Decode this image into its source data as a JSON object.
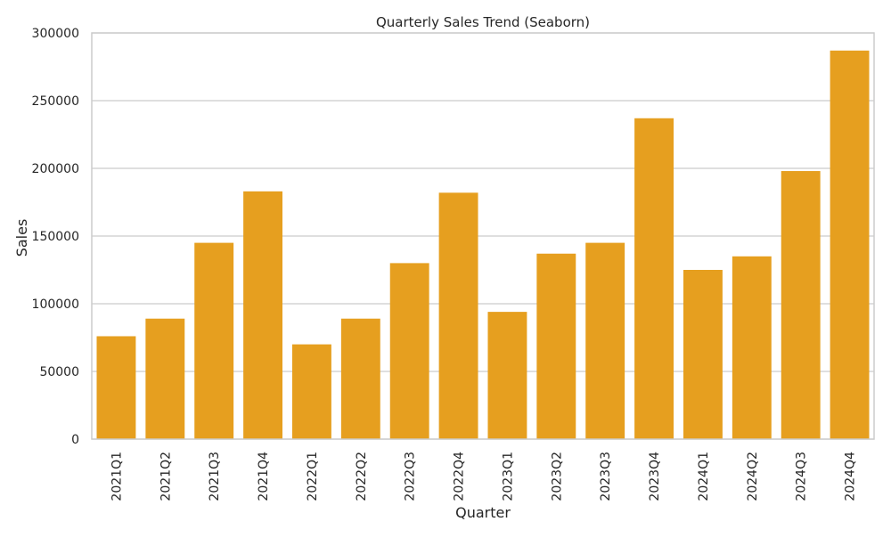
{
  "chart_data": {
    "type": "bar",
    "title": "Quarterly Sales Trend (Seaborn)",
    "xlabel": "Quarter",
    "ylabel": "Sales",
    "categories": [
      "2021Q1",
      "2021Q2",
      "2021Q3",
      "2021Q4",
      "2022Q1",
      "2022Q2",
      "2022Q3",
      "2022Q4",
      "2023Q1",
      "2023Q2",
      "2023Q3",
      "2023Q4",
      "2024Q1",
      "2024Q2",
      "2024Q3",
      "2024Q4"
    ],
    "values": [
      76000,
      89000,
      145000,
      183000,
      70000,
      89000,
      130000,
      182000,
      94000,
      137000,
      145000,
      237000,
      125000,
      135000,
      198000,
      287000
    ],
    "ylim": [
      0,
      300000
    ],
    "yticks": [
      0,
      50000,
      100000,
      150000,
      200000,
      250000,
      300000
    ],
    "ytick_labels": [
      "0",
      "50000",
      "100000",
      "150000",
      "200000",
      "250000",
      "300000"
    ],
    "grid": true,
    "bar_color": "#e69f1f",
    "grid_color": "#cccccc",
    "spine_color": "#cccccc"
  }
}
